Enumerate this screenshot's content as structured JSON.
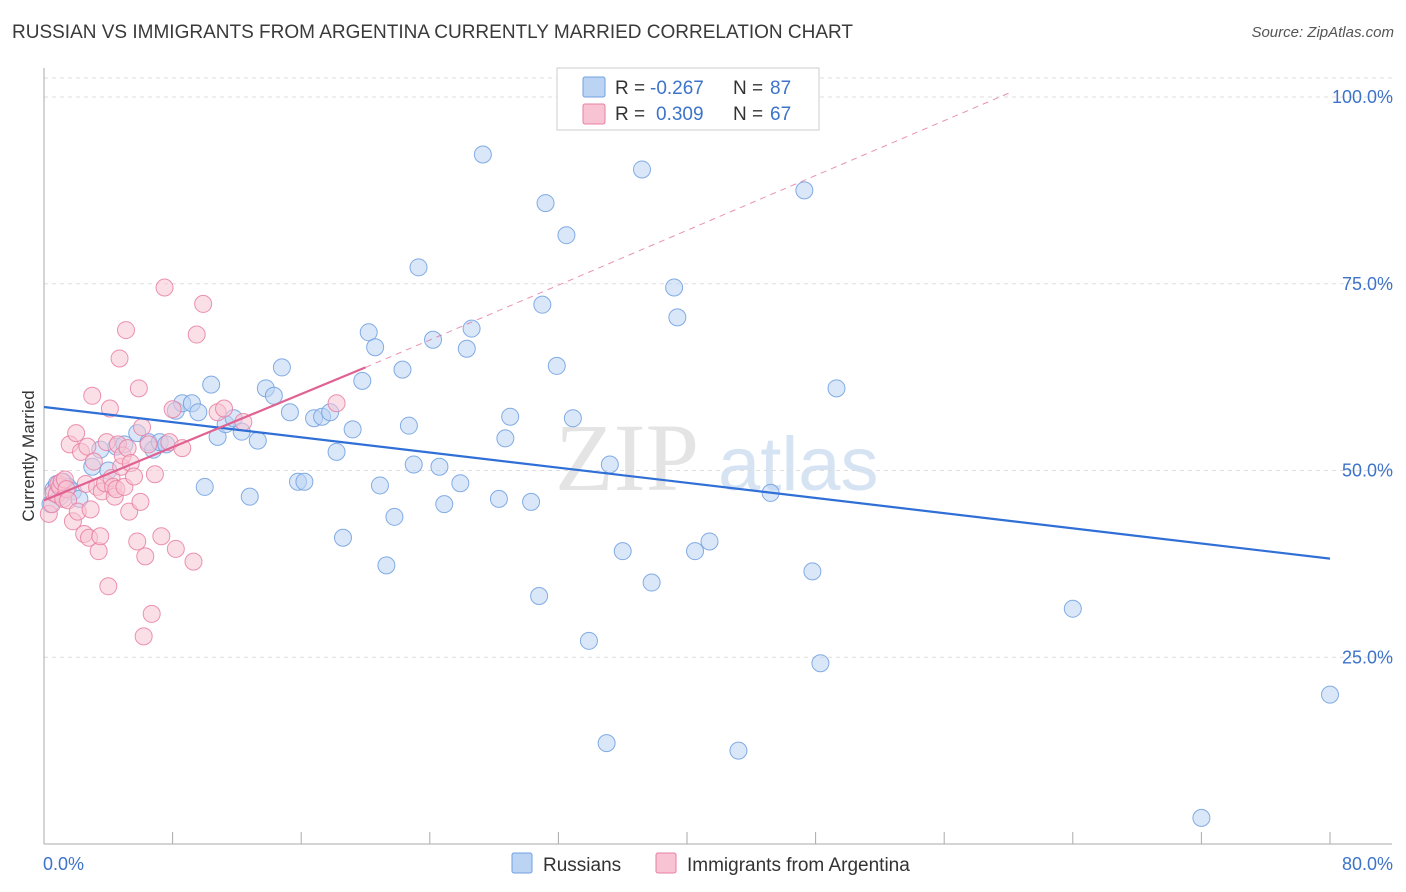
{
  "header": {
    "title": "RUSSIAN VS IMMIGRANTS FROM ARGENTINA CURRENTLY MARRIED CORRELATION CHART",
    "source": "Source: ZipAtlas.com"
  },
  "watermark": {
    "zip": "ZIP",
    "atlas": "atlas"
  },
  "legend_box": {
    "r_label": "R =",
    "n_label": "N =",
    "rows": [
      {
        "r": "-0.267",
        "n": "87",
        "color": "#a9c8f0"
      },
      {
        "r": "0.309",
        "n": "67",
        "color": "#f7b8cb"
      }
    ]
  },
  "colors": {
    "russians": "#6f9fe0",
    "russians_fill": "#bcd4f3",
    "argentina": "#e77fa3",
    "argentina_fill": "#f8c4d4",
    "trend_blue": "#2f6fd6",
    "trend_pink": "#e06292",
    "grid": "#dddddd",
    "tick_text": "#3d73c9"
  },
  "chart_data": {
    "type": "scatter",
    "title": "RUSSIAN VS IMMIGRANTS FROM ARGENTINA CURRENTLY MARRIED CORRELATION CHART",
    "xlabel": "",
    "ylabel": "Currently Married",
    "xlim": [
      0,
      80
    ],
    "ylim": [
      0,
      105
    ],
    "x_tick_labels": [
      "0.0%",
      "80.0%"
    ],
    "y_ticks": [
      25,
      50,
      75,
      100
    ],
    "y_tick_labels": [
      "25.0%",
      "50.0%",
      "75.0%",
      "100.0%"
    ],
    "grid": true,
    "legend_position": "bottom",
    "series": [
      {
        "name": "Russians",
        "r": -0.267,
        "n": 87,
        "trend": {
          "x": [
            0,
            80
          ],
          "y": [
            58.5,
            38.2
          ],
          "style": "solid"
        },
        "points": [
          [
            0.4,
            45.5
          ],
          [
            0.6,
            47.5
          ],
          [
            0.8,
            48.2
          ],
          [
            1.0,
            46.5
          ],
          [
            1.2,
            48.5
          ],
          [
            1.5,
            47.8
          ],
          [
            1.8,
            47.2
          ],
          [
            2.2,
            46.2
          ],
          [
            3.0,
            50.5
          ],
          [
            3.5,
            52.8
          ],
          [
            4.0,
            50.0
          ],
          [
            4.5,
            53.2
          ],
          [
            5.0,
            53.5
          ],
          [
            5.8,
            55.0
          ],
          [
            6.5,
            53.8
          ],
          [
            6.8,
            52.8
          ],
          [
            7.2,
            53.8
          ],
          [
            7.6,
            53.5
          ],
          [
            8.2,
            58.0
          ],
          [
            8.6,
            59.0
          ],
          [
            9.2,
            59.0
          ],
          [
            9.6,
            57.8
          ],
          [
            10.0,
            47.8
          ],
          [
            10.4,
            61.5
          ],
          [
            10.8,
            54.5
          ],
          [
            11.3,
            56.2
          ],
          [
            11.8,
            57.0
          ],
          [
            12.3,
            55.2
          ],
          [
            12.8,
            46.5
          ],
          [
            13.3,
            54.0
          ],
          [
            13.8,
            61.0
          ],
          [
            14.3,
            60.0
          ],
          [
            14.8,
            63.8
          ],
          [
            15.3,
            57.8
          ],
          [
            15.8,
            48.5
          ],
          [
            16.2,
            48.5
          ],
          [
            16.8,
            57.0
          ],
          [
            17.3,
            57.2
          ],
          [
            17.8,
            57.8
          ],
          [
            18.2,
            52.5
          ],
          [
            18.6,
            41.0
          ],
          [
            19.2,
            55.5
          ],
          [
            19.8,
            62.0
          ],
          [
            20.2,
            68.5
          ],
          [
            20.6,
            66.5
          ],
          [
            20.9,
            48.0
          ],
          [
            21.3,
            37.3
          ],
          [
            21.8,
            43.8
          ],
          [
            22.3,
            63.5
          ],
          [
            22.7,
            56.0
          ],
          [
            23.0,
            50.8
          ],
          [
            23.3,
            77.2
          ],
          [
            24.2,
            67.5
          ],
          [
            24.6,
            50.5
          ],
          [
            24.9,
            45.5
          ],
          [
            25.9,
            48.3
          ],
          [
            26.3,
            66.3
          ],
          [
            26.6,
            69.0
          ],
          [
            27.3,
            92.3
          ],
          [
            28.3,
            46.2
          ],
          [
            28.7,
            54.3
          ],
          [
            29.0,
            57.2
          ],
          [
            30.3,
            45.8
          ],
          [
            30.8,
            33.2
          ],
          [
            31.0,
            72.2
          ],
          [
            31.2,
            85.8
          ],
          [
            31.9,
            64.0
          ],
          [
            32.5,
            81.5
          ],
          [
            32.9,
            57.0
          ],
          [
            33.9,
            27.2
          ],
          [
            35.0,
            13.5
          ],
          [
            35.2,
            50.8
          ],
          [
            36.0,
            39.2
          ],
          [
            37.2,
            90.3
          ],
          [
            37.8,
            35.0
          ],
          [
            39.2,
            74.5
          ],
          [
            39.4,
            70.5
          ],
          [
            40.5,
            39.2
          ],
          [
            41.4,
            40.5
          ],
          [
            43.2,
            12.5
          ],
          [
            45.2,
            47.0
          ],
          [
            47.3,
            87.5
          ],
          [
            47.8,
            36.5
          ],
          [
            48.3,
            24.2
          ],
          [
            49.3,
            61.0
          ],
          [
            64.0,
            31.5
          ],
          [
            72.0,
            3.5
          ],
          [
            80.0,
            20.0
          ]
        ]
      },
      {
        "name": "Immigrants from Argentina",
        "r": 0.309,
        "n": 67,
        "trend": {
          "x": [
            0,
            20
          ],
          "y": [
            46.0,
            63.8
          ],
          "dashed_extension": {
            "x": [
              20,
              60
            ],
            "y": [
              63.8,
              100.5
            ]
          }
        },
        "points": [
          [
            0.3,
            44.2
          ],
          [
            0.5,
            45.5
          ],
          [
            0.6,
            47.0
          ],
          [
            0.8,
            46.8
          ],
          [
            0.9,
            48.2
          ],
          [
            1.0,
            47.8
          ],
          [
            1.1,
            48.5
          ],
          [
            1.2,
            46.2
          ],
          [
            1.3,
            48.8
          ],
          [
            1.4,
            47.5
          ],
          [
            1.5,
            46.0
          ],
          [
            1.6,
            53.5
          ],
          [
            1.8,
            43.2
          ],
          [
            2.0,
            55.0
          ],
          [
            2.1,
            44.5
          ],
          [
            2.3,
            52.5
          ],
          [
            2.5,
            41.5
          ],
          [
            2.6,
            48.2
          ],
          [
            2.7,
            53.2
          ],
          [
            2.8,
            41.0
          ],
          [
            2.9,
            44.8
          ],
          [
            3.0,
            60.0
          ],
          [
            3.1,
            51.2
          ],
          [
            3.3,
            47.8
          ],
          [
            3.4,
            39.2
          ],
          [
            3.5,
            41.2
          ],
          [
            3.6,
            47.2
          ],
          [
            3.8,
            48.3
          ],
          [
            3.9,
            53.8
          ],
          [
            4.0,
            34.5
          ],
          [
            4.1,
            58.3
          ],
          [
            4.2,
            49.0
          ],
          [
            4.3,
            47.8
          ],
          [
            4.4,
            46.5
          ],
          [
            4.5,
            47.5
          ],
          [
            4.6,
            53.5
          ],
          [
            4.7,
            65.0
          ],
          [
            4.8,
            50.5
          ],
          [
            4.9,
            52.0
          ],
          [
            5.0,
            47.8
          ],
          [
            5.1,
            68.8
          ],
          [
            5.2,
            53.0
          ],
          [
            5.3,
            44.5
          ],
          [
            5.4,
            51.0
          ],
          [
            5.6,
            49.2
          ],
          [
            5.8,
            40.5
          ],
          [
            5.9,
            61.0
          ],
          [
            6.0,
            45.8
          ],
          [
            6.1,
            55.8
          ],
          [
            6.2,
            27.8
          ],
          [
            6.3,
            38.5
          ],
          [
            6.5,
            53.5
          ],
          [
            6.7,
            30.8
          ],
          [
            6.9,
            49.5
          ],
          [
            7.3,
            41.2
          ],
          [
            7.5,
            74.5
          ],
          [
            7.8,
            53.8
          ],
          [
            8.0,
            58.2
          ],
          [
            8.2,
            39.5
          ],
          [
            8.6,
            53.0
          ],
          [
            9.3,
            37.8
          ],
          [
            9.5,
            68.2
          ],
          [
            9.9,
            72.3
          ],
          [
            10.8,
            57.8
          ],
          [
            11.2,
            58.3
          ],
          [
            12.4,
            56.5
          ],
          [
            18.2,
            59.0
          ]
        ]
      }
    ]
  },
  "bottom_legend": [
    {
      "label": "Russians"
    },
    {
      "label": "Immigrants from Argentina"
    }
  ]
}
